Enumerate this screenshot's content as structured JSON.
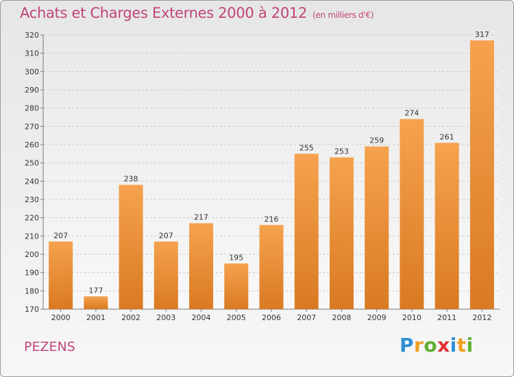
{
  "chart_data": {
    "type": "bar",
    "title": "Achats et Charges Externes 2000 à 2012",
    "unit_note": "(en milliers d'€)",
    "categories": [
      "2000",
      "2001",
      "2002",
      "2003",
      "2004",
      "2005",
      "2006",
      "2007",
      "2008",
      "2009",
      "2010",
      "2011",
      "2012"
    ],
    "values": [
      207,
      177,
      238,
      207,
      217,
      195,
      216,
      255,
      253,
      259,
      274,
      261,
      317
    ],
    "ylim": [
      170,
      320
    ],
    "yticks": [
      170,
      180,
      190,
      200,
      210,
      220,
      230,
      240,
      250,
      260,
      270,
      280,
      290,
      300,
      310,
      320
    ],
    "xlabel": "",
    "ylabel": "",
    "grid": true,
    "bar_color_light": "#f6a24e",
    "bar_color_dark": "#d97a22"
  },
  "footer": {
    "commune": "PEZENS",
    "logo_letters": [
      "P",
      "r",
      "o",
      "x",
      "i",
      "t",
      "i"
    ],
    "logo_colors": [
      "#2e8fd6",
      "#f0a020",
      "#60b030",
      "#e03030",
      "#2e8fd6",
      "#f0a020",
      "#60b030"
    ]
  }
}
